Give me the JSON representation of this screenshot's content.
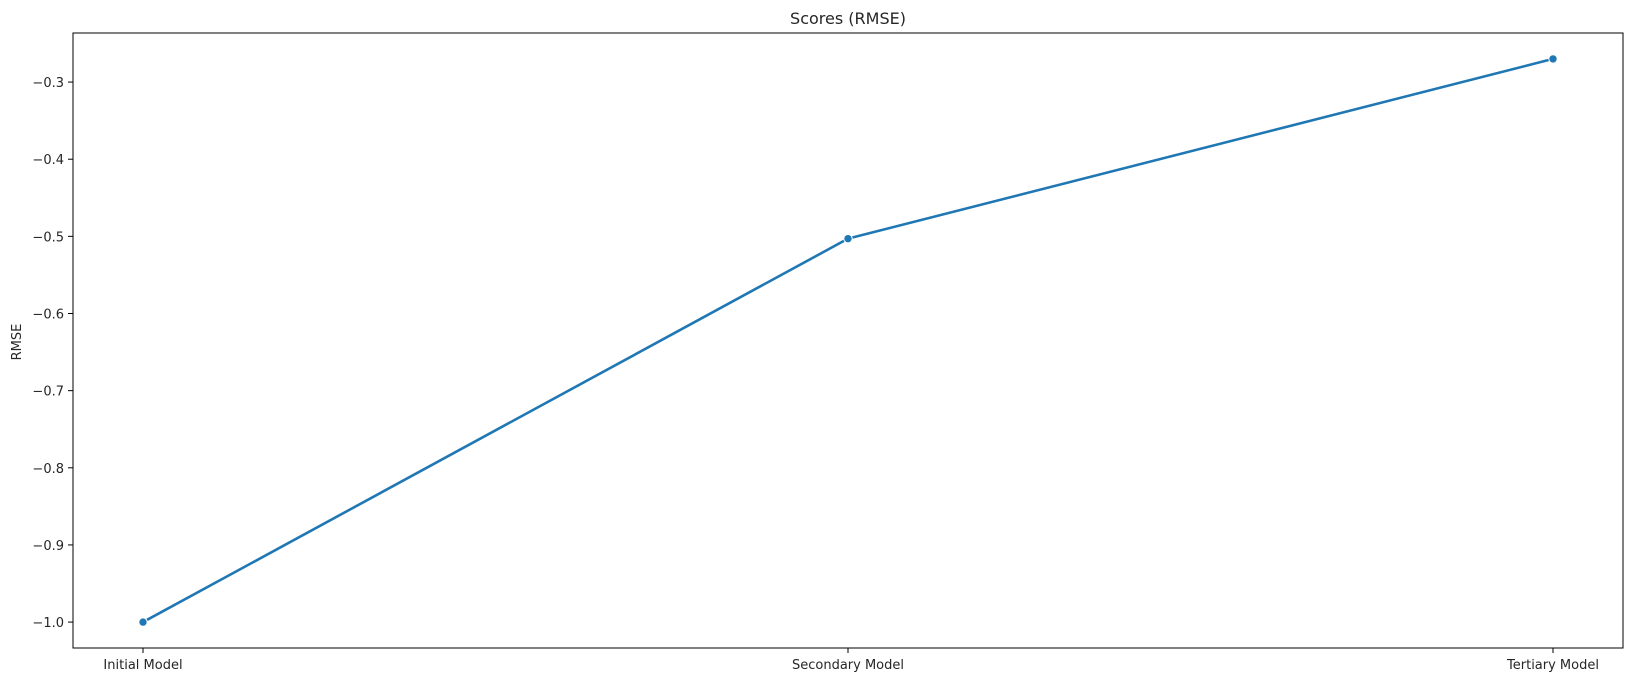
{
  "chart_data": {
    "type": "line",
    "title": "Scores (RMSE)",
    "xlabel": "",
    "ylabel": "RMSE",
    "categories": [
      "Initial Model",
      "Secondary Model",
      "Tertiary Model"
    ],
    "series": [
      {
        "values": [
          -1.0,
          -0.503,
          -0.27
        ],
        "color": "#1f77b4"
      }
    ],
    "ylim": [
      -1.0336,
      -0.2364
    ],
    "yticks": [
      -1.0,
      -0.9,
      -0.8,
      -0.7,
      -0.6,
      -0.5,
      -0.4,
      -0.3
    ],
    "ytick_labels": [
      "−1.0",
      "−0.9",
      "−0.8",
      "−0.7",
      "−0.6",
      "−0.5",
      "−0.4",
      "−0.3"
    ],
    "grid": false,
    "markers": true
  }
}
